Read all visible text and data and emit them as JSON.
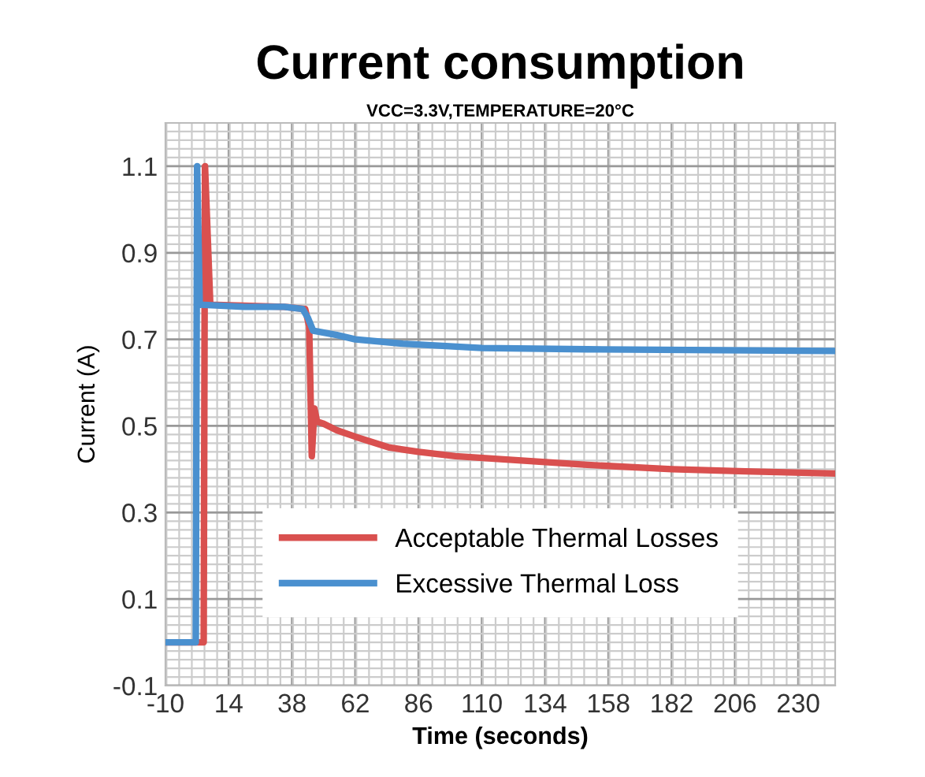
{
  "chart_data": {
    "type": "line",
    "title": "Current consumption",
    "subtitle": "VCC=3.3V,TEMPERATURE=20°C",
    "xlabel": "Time (seconds)",
    "ylabel": "Current (A)",
    "series": [
      {
        "name": "Acceptable Thermal Losses",
        "color": "#d9504f",
        "x": [
          -10,
          4.5,
          5,
          7,
          35,
          43,
          44.5,
          45.5,
          46.5,
          47.5,
          50,
          55,
          62,
          75,
          86,
          100,
          125,
          150,
          182,
          210,
          244
        ],
        "values": [
          0,
          0,
          1.1,
          0.78,
          0.775,
          0.77,
          0.73,
          0.43,
          0.54,
          0.51,
          0.505,
          0.49,
          0.475,
          0.45,
          0.44,
          0.43,
          0.42,
          0.41,
          0.4,
          0.395,
          0.39
        ]
      },
      {
        "name": "Excessive Thermal Loss",
        "color": "#4a90cf",
        "x": [
          -10,
          1.5,
          2,
          3,
          20,
          35,
          42,
          44,
          46,
          55,
          62,
          80,
          110,
          150,
          200,
          244
        ],
        "values": [
          0,
          0,
          1.1,
          0.78,
          0.775,
          0.775,
          0.77,
          0.75,
          0.72,
          0.71,
          0.7,
          0.69,
          0.68,
          0.677,
          0.675,
          0.673
        ]
      }
    ],
    "xlim": [
      -10,
      244
    ],
    "xticks": [
      -10,
      14,
      38,
      62,
      86,
      110,
      134,
      158,
      182,
      206,
      230
    ],
    "ylim": [
      -0.1,
      1.2
    ],
    "yticks": [
      -0.1,
      0.1,
      0.3,
      0.5,
      0.7,
      0.9,
      1.1
    ],
    "grid": true,
    "legend": "bottom",
    "marker": "none",
    "line_style": "solid"
  }
}
